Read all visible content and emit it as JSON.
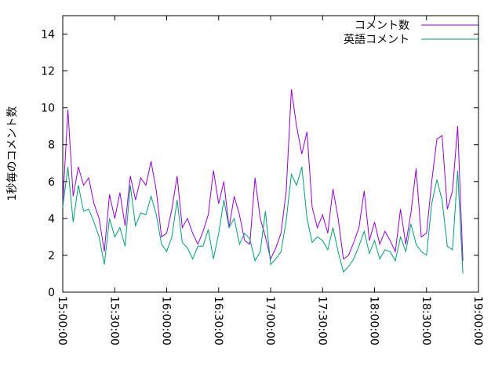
{
  "chart_data": {
    "type": "line",
    "ylabel": "1秒毎のコメント数",
    "x": [
      "15:00:00",
      "15:03:00",
      "15:06:00",
      "15:09:00",
      "15:12:00",
      "15:15:00",
      "15:18:00",
      "15:21:00",
      "15:24:00",
      "15:27:00",
      "15:30:00",
      "15:33:00",
      "15:36:00",
      "15:39:00",
      "15:42:00",
      "15:45:00",
      "15:48:00",
      "15:51:00",
      "15:54:00",
      "15:57:00",
      "16:00:00",
      "16:03:00",
      "16:06:00",
      "16:09:00",
      "16:12:00",
      "16:15:00",
      "16:18:00",
      "16:21:00",
      "16:24:00",
      "16:27:00",
      "16:30:00",
      "16:33:00",
      "16:36:00",
      "16:39:00",
      "16:42:00",
      "16:45:00",
      "16:48:00",
      "16:51:00",
      "16:54:00",
      "16:57:00",
      "17:00:00",
      "17:03:00",
      "17:06:00",
      "17:09:00",
      "17:12:00",
      "17:15:00",
      "17:18:00",
      "17:21:00",
      "17:24:00",
      "17:27:00",
      "17:30:00",
      "17:33:00",
      "17:36:00",
      "17:39:00",
      "17:42:00",
      "17:45:00",
      "17:48:00",
      "17:51:00",
      "17:54:00",
      "17:57:00",
      "18:00:00",
      "18:03:00",
      "18:06:00",
      "18:09:00",
      "18:12:00",
      "18:15:00",
      "18:18:00",
      "18:21:00",
      "18:24:00",
      "18:27:00",
      "18:30:00",
      "18:33:00",
      "18:36:00",
      "18:39:00",
      "18:42:00",
      "18:45:00",
      "18:48:00",
      "18:51:00"
    ],
    "series": [
      {
        "name": "コメント数",
        "color": "#9400d3",
        "values": [
          4.8,
          9.9,
          5.2,
          6.8,
          5.8,
          6.2,
          4.8,
          4.0,
          2.2,
          5.3,
          4.0,
          5.4,
          3.6,
          6.3,
          5.0,
          6.2,
          5.8,
          7.1,
          5.5,
          3.0,
          3.2,
          4.5,
          6.3,
          3.5,
          4.0,
          3.2,
          2.6,
          3.3,
          4.2,
          6.6,
          4.8,
          6.0,
          3.5,
          5.2,
          4.2,
          2.8,
          2.6,
          6.2,
          4.0,
          3.0,
          1.8,
          2.4,
          3.2,
          5.5,
          11.0,
          9.0,
          7.5,
          8.7,
          4.6,
          3.5,
          4.2,
          3.2,
          5.6,
          4.0,
          1.8,
          2.0,
          2.7,
          3.5,
          5.5,
          2.8,
          3.8,
          2.6,
          3.3,
          2.8,
          2.2,
          4.5,
          2.6,
          4.3,
          6.7,
          3.0,
          3.2,
          6.0,
          8.3,
          8.5,
          4.5,
          5.5,
          9.0,
          1.7
        ]
      },
      {
        "name": "英語コメント",
        "color": "#009e73",
        "values": [
          4.6,
          6.8,
          3.8,
          5.8,
          4.4,
          4.5,
          3.8,
          3.0,
          1.5,
          4.0,
          3.0,
          3.5,
          2.5,
          5.8,
          3.6,
          4.3,
          4.2,
          5.2,
          4.2,
          2.6,
          2.2,
          3.0,
          5.0,
          2.7,
          2.4,
          1.8,
          2.5,
          2.5,
          3.4,
          1.8,
          3.2,
          5.0,
          3.5,
          4.0,
          2.6,
          3.2,
          2.9,
          1.7,
          2.2,
          4.4,
          1.5,
          1.8,
          2.2,
          3.9,
          6.4,
          5.8,
          6.8,
          4.0,
          2.7,
          3.0,
          2.8,
          2.3,
          3.5,
          2.2,
          1.1,
          1.4,
          1.8,
          2.5,
          3.3,
          2.1,
          2.8,
          1.8,
          2.3,
          2.2,
          1.7,
          3.0,
          2.2,
          3.7,
          2.6,
          2.2,
          2.0,
          4.8,
          6.1,
          5.0,
          2.5,
          2.3,
          6.6,
          1.0
        ]
      }
    ],
    "xlim": [
      "15:00:00",
      "19:00:00"
    ],
    "xticks": [
      "15:00:00",
      "15:30:00",
      "16:00:00",
      "16:30:00",
      "17:00:00",
      "17:30:00",
      "18:00:00",
      "18:30:00",
      "19:00:00"
    ],
    "ylim": [
      0,
      15
    ],
    "yticks": [
      0,
      2,
      4,
      6,
      8,
      10,
      12,
      14
    ],
    "legend": "top-right"
  }
}
